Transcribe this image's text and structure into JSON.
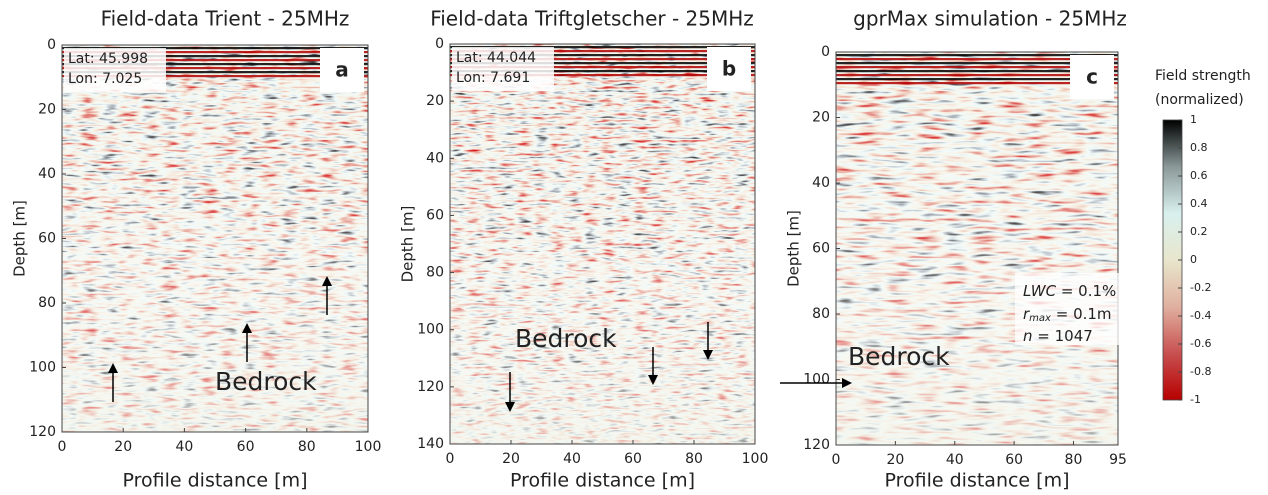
{
  "chart_data": [
    {
      "type": "image",
      "title": "Field-data Trient - 25MHz",
      "xlabel": "Profile distance [m]",
      "ylabel": "Depth [m]",
      "xlim": [
        0,
        100
      ],
      "xticks": [
        0,
        20,
        40,
        60,
        80,
        100
      ],
      "ylim": [
        0,
        120
      ],
      "yticks": [
        0,
        20,
        40,
        60,
        80,
        100,
        120
      ],
      "y_reversed": true,
      "labels": {
        "panel": "a",
        "lat": "Lat: 45.998",
        "lon": "Lon: 7.025",
        "bedrock": "Bedrock"
      }
    },
    {
      "type": "image",
      "title": "Field-data Triftgletscher - 25MHz",
      "xlabel": "Profile distance [m]",
      "ylabel": "Depth [m]",
      "xlim": [
        0,
        100
      ],
      "xticks": [
        0,
        20,
        40,
        60,
        80,
        100
      ],
      "ylim": [
        0,
        140
      ],
      "yticks": [
        0,
        20,
        40,
        60,
        80,
        100,
        120,
        140
      ],
      "y_reversed": true,
      "labels": {
        "panel": "b",
        "lat": "Lat: 44.044",
        "lon": "Lon: 7.691",
        "bedrock": "Bedrock"
      }
    },
    {
      "type": "image",
      "title": "gprMax simulation - 25MHz",
      "xlabel": "Profile distance [m]",
      "ylabel": "Depth [m]",
      "xlim": [
        0,
        95
      ],
      "xticks": [
        0,
        20,
        40,
        60,
        80,
        95
      ],
      "ylim": [
        0,
        120
      ],
      "yticks": [
        0,
        20,
        40,
        60,
        80,
        100,
        120
      ],
      "y_reversed": true,
      "labels": {
        "panel": "c",
        "bedrock": "Bedrock",
        "lwc_var": "LWC",
        "lwc_rest": " = 0.1%",
        "r_var": "r",
        "r_sub": "max",
        "r_rest": " = 0.1m",
        "n_var": "n",
        "n_rest": " = 1047"
      },
      "colorbar": {
        "label": [
          "Field strength",
          "(normalized)"
        ],
        "lim": [
          -1,
          1
        ],
        "ticks": [
          1,
          0.8,
          0.6,
          0.4,
          0.2,
          0,
          -0.2,
          -0.4,
          -0.6,
          -0.8,
          -1
        ],
        "colors": [
          "#b80000",
          "#c85050",
          "#e0b0a0",
          "#e8e6cc",
          "#d8f0ee",
          "#8a9898",
          "#000000"
        ]
      }
    }
  ]
}
